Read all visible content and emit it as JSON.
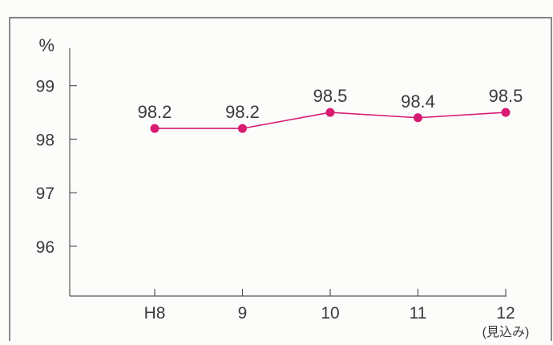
{
  "chart_data": {
    "type": "line",
    "categories": [
      "H8",
      "9",
      "10",
      "11",
      "12"
    ],
    "x_sublabels": [
      "",
      "",
      "",
      "",
      "(見込み)"
    ],
    "series": [
      {
        "values": [
          98.2,
          98.2,
          98.5,
          98.4,
          98.5
        ],
        "data_labels": [
          "98.2",
          "98.2",
          "98.5",
          "98.4",
          "98.5"
        ],
        "color": "#d81b72"
      }
    ],
    "y_unit": "%",
    "yticks": [
      {
        "value": 96,
        "label": "96"
      },
      {
        "value": 97,
        "label": "97"
      },
      {
        "value": 98,
        "label": "98"
      },
      {
        "value": 99,
        "label": "99"
      }
    ],
    "ylim": [
      95.07,
      99.7
    ],
    "grid": false,
    "legend": "none",
    "colors": {
      "line": "#d81b72",
      "marker": "#d81b72",
      "axis": "#555555",
      "frame": "#5a5a5a",
      "background": "#fcfcfa"
    }
  }
}
